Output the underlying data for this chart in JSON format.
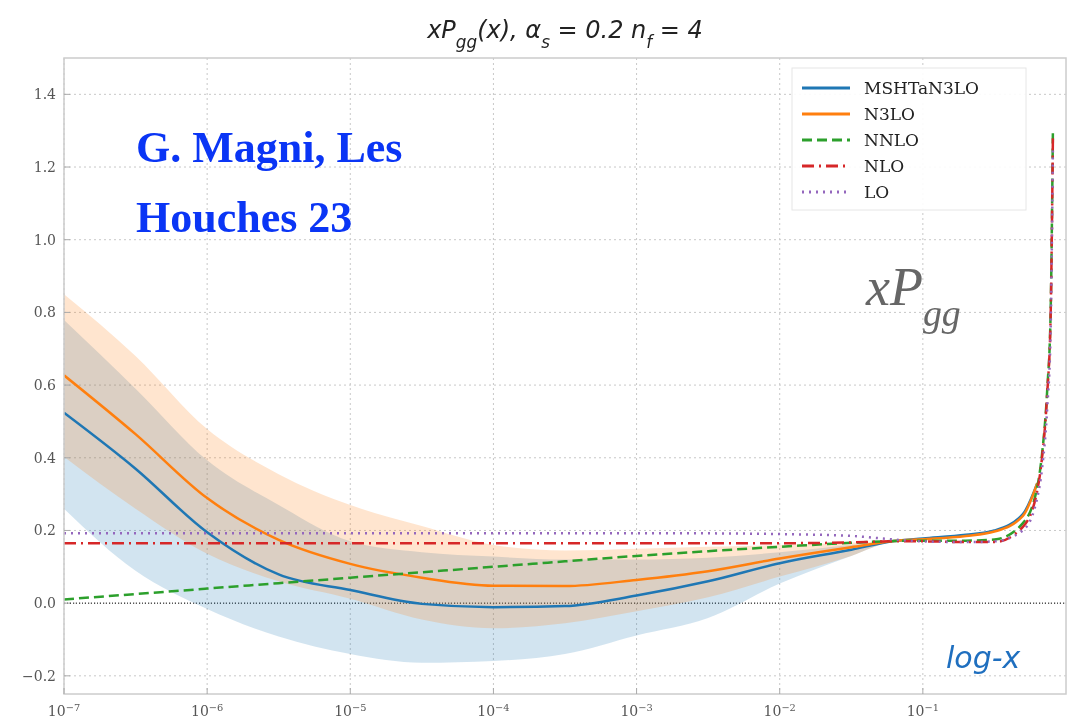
{
  "chart_data": {
    "type": "line",
    "title": "xP$_{gg}$(x),  α$_{s}$ = 0.2 n$_{f}$ = 4",
    "x": [
      1e-07,
      3.16e-07,
      1e-06,
      3.16e-06,
      1e-05,
      3.16e-05,
      0.0001,
      0.000316,
      0.001,
      0.00316,
      0.01,
      0.0316,
      0.063,
      0.1,
      0.2,
      0.316,
      0.5,
      0.63,
      0.68,
      0.74,
      0.78,
      0.81
    ],
    "series": [
      {
        "name": "MSHTaN3LO",
        "color": "#1f77b4",
        "line_style": "solid",
        "values": [
          0.524,
          0.37,
          0.195,
          0.079,
          0.036,
          -0.002,
          -0.011,
          -0.008,
          0.021,
          0.06,
          0.11,
          0.147,
          0.171,
          0.178,
          0.188,
          0.2,
          0.245,
          0.33,
          null,
          null,
          null,
          null
        ],
        "lower": [
          0.26,
          0.089,
          -0.016,
          -0.092,
          -0.14,
          -0.164,
          -0.159,
          -0.14,
          -0.089,
          -0.041,
          0.054,
          0.13,
          0.171,
          0.178,
          0.188,
          0.2,
          0.245,
          0.33,
          null,
          null,
          null,
          null
        ],
        "upper": [
          0.779,
          0.59,
          0.393,
          0.27,
          0.17,
          0.14,
          0.128,
          0.12,
          0.12,
          0.125,
          0.14,
          0.16,
          0.171,
          0.178,
          0.188,
          0.2,
          0.245,
          0.33,
          null,
          null,
          null,
          null
        ]
      },
      {
        "name": "N3LO",
        "color": "#ff7f0e",
        "line_style": "solid",
        "values": [
          0.627,
          0.465,
          0.289,
          0.174,
          0.108,
          0.07,
          0.048,
          0.047,
          0.064,
          0.088,
          0.123,
          0.154,
          0.171,
          0.176,
          0.185,
          0.197,
          0.24,
          0.33,
          null,
          null,
          null,
          null
        ],
        "lower": [
          0.403,
          0.26,
          0.136,
          0.06,
          0.012,
          -0.045,
          -0.069,
          -0.055,
          -0.022,
          0.016,
          0.073,
          0.13,
          0.171,
          0.176,
          0.185,
          0.197,
          0.24,
          0.33,
          null,
          null,
          null,
          null
        ],
        "upper": [
          0.85,
          0.68,
          0.479,
          0.355,
          0.27,
          0.212,
          0.16,
          0.145,
          0.15,
          0.155,
          0.16,
          0.166,
          0.171,
          0.176,
          0.185,
          0.197,
          0.24,
          0.33,
          null,
          null,
          null,
          null
        ]
      },
      {
        "name": "NNLO",
        "color": "#2ca02c",
        "line_style": "dashed",
        "values": [
          0.01,
          0.025,
          0.04,
          0.055,
          0.07,
          0.085,
          0.1,
          0.115,
          0.13,
          0.143,
          0.155,
          0.166,
          0.171,
          0.172,
          0.172,
          0.175,
          0.22,
          0.32,
          0.41,
          0.59,
          0.79,
          1.3
        ]
      },
      {
        "name": "NLO",
        "color": "#d62728",
        "line_style": "dashdot",
        "values": [
          0.165,
          0.165,
          0.165,
          0.165,
          0.165,
          0.165,
          0.165,
          0.165,
          0.165,
          0.165,
          0.165,
          0.167,
          0.17,
          0.17,
          0.168,
          0.168,
          0.21,
          0.31,
          0.4,
          0.58,
          0.78,
          1.28
        ]
      },
      {
        "name": "LO",
        "color": "#9467bd",
        "line_style": "dotted",
        "values": [
          0.192,
          0.192,
          0.192,
          0.192,
          0.192,
          0.192,
          0.192,
          0.192,
          0.192,
          0.192,
          0.19,
          0.185,
          0.175,
          0.17,
          0.168,
          0.17,
          0.2,
          0.29,
          0.37,
          0.54,
          0.74,
          1.25
        ]
      }
    ],
    "log": "x",
    "xlim": [
      1e-07,
      1
    ],
    "ylim": [
      -0.25,
      1.5
    ],
    "xticks": [
      {
        "value": 1e-07,
        "label": "10$^{−7}$"
      },
      {
        "value": 1e-06,
        "label": "10$^{−6}$"
      },
      {
        "value": 1e-05,
        "label": "10$^{−5}$"
      },
      {
        "value": 0.0001,
        "label": "10$^{−4}$"
      },
      {
        "value": 0.001,
        "label": "10$^{−3}$"
      },
      {
        "value": 0.01,
        "label": "10$^{−2}$"
      },
      {
        "value": 0.1,
        "label": "10$^{−1}$"
      }
    ],
    "yticks": [
      {
        "value": -0.2,
        "label": "−0.2"
      },
      {
        "value": 0,
        "label": "0.0"
      },
      {
        "value": 0.2,
        "label": "0.2"
      },
      {
        "value": 0.4,
        "label": "0.4"
      },
      {
        "value": 0.6,
        "label": "0.6"
      },
      {
        "value": 0.8,
        "label": "0.8"
      },
      {
        "value": 1,
        "label": "1.0"
      },
      {
        "value": 1.2,
        "label": "1.2"
      },
      {
        "value": 1.4,
        "label": "1.4"
      }
    ],
    "grid": true,
    "legend": "top right",
    "ref_lines": [
      {
        "axis": "y",
        "value": 0,
        "color": "#000000",
        "line_style": "dotted"
      }
    ],
    "annotations": [
      "G. Magni, Les Houches 23",
      "xP$_{gg}$",
      "log-x"
    ]
  }
}
